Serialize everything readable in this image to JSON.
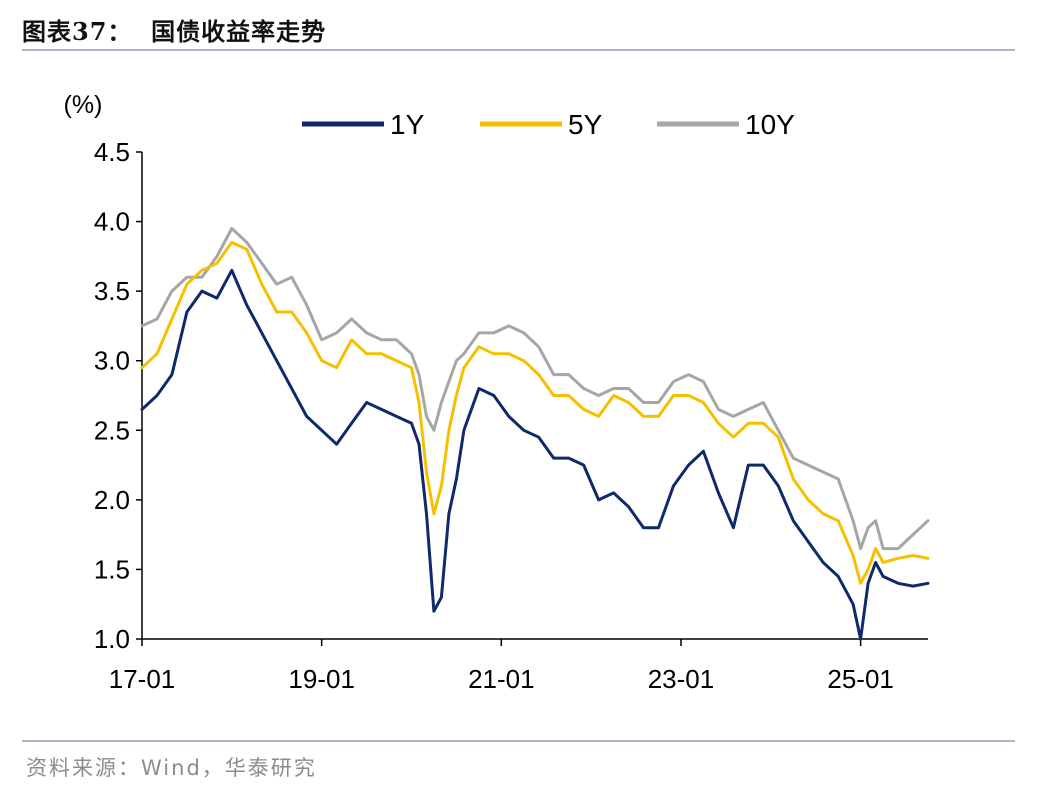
{
  "figure": {
    "title": "图表37：  国债收益率走势",
    "source": "资料来源：Wind，华泰研究"
  },
  "colors": {
    "1Y": "#0f2a6b",
    "5Y": "#f6c000",
    "10Y": "#a6a6a6",
    "rule": "#a9b6c6"
  },
  "chart_data": {
    "type": "line",
    "title": "",
    "xlabel": "",
    "ylabel": "(%)",
    "ylim": [
      1.0,
      4.5
    ],
    "yticks": [
      "1.0",
      "1.5",
      "2.0",
      "2.5",
      "3.0",
      "3.5",
      "4.0",
      "4.5"
    ],
    "xticks": [
      "17-01",
      "19-01",
      "21-01",
      "23-01",
      "25-01"
    ],
    "xlim": [
      "2017-01",
      "2025-10"
    ],
    "grid": false,
    "legend_position": "top",
    "x": [
      "2017-01",
      "2017-03",
      "2017-05",
      "2017-07",
      "2017-09",
      "2017-11",
      "2018-01",
      "2018-03",
      "2018-05",
      "2018-07",
      "2018-09",
      "2018-11",
      "2019-01",
      "2019-03",
      "2019-05",
      "2019-07",
      "2019-09",
      "2019-11",
      "2020-01",
      "2020-02",
      "2020-03",
      "2020-04",
      "2020-05",
      "2020-06",
      "2020-07",
      "2020-08",
      "2020-10",
      "2020-12",
      "2021-02",
      "2021-04",
      "2021-06",
      "2021-08",
      "2021-10",
      "2021-12",
      "2022-02",
      "2022-04",
      "2022-06",
      "2022-08",
      "2022-10",
      "2022-12",
      "2023-02",
      "2023-04",
      "2023-06",
      "2023-08",
      "2023-10",
      "2023-12",
      "2024-02",
      "2024-04",
      "2024-06",
      "2024-08",
      "2024-10",
      "2024-12",
      "2025-01",
      "2025-02",
      "2025-03",
      "2025-04",
      "2025-06",
      "2025-08",
      "2025-10"
    ],
    "series": [
      {
        "name": "1Y",
        "values": [
          2.65,
          2.75,
          2.9,
          3.35,
          3.5,
          3.45,
          3.65,
          3.4,
          3.2,
          3.0,
          2.8,
          2.6,
          2.5,
          2.4,
          2.55,
          2.7,
          2.65,
          2.6,
          2.55,
          2.4,
          1.9,
          1.2,
          1.3,
          1.9,
          2.15,
          2.5,
          2.8,
          2.75,
          2.6,
          2.5,
          2.45,
          2.3,
          2.3,
          2.25,
          2.0,
          2.05,
          1.95,
          1.8,
          1.8,
          2.1,
          2.25,
          2.35,
          2.05,
          1.8,
          2.25,
          2.25,
          2.1,
          1.85,
          1.7,
          1.55,
          1.45,
          1.25,
          1.0,
          1.4,
          1.55,
          1.45,
          1.4,
          1.38,
          1.4
        ]
      },
      {
        "name": "5Y",
        "values": [
          2.95,
          3.05,
          3.3,
          3.55,
          3.65,
          3.7,
          3.85,
          3.8,
          3.55,
          3.35,
          3.35,
          3.2,
          3.0,
          2.95,
          3.15,
          3.05,
          3.05,
          3.0,
          2.95,
          2.7,
          2.2,
          1.9,
          2.1,
          2.5,
          2.75,
          2.95,
          3.1,
          3.05,
          3.05,
          3.0,
          2.9,
          2.75,
          2.75,
          2.65,
          2.6,
          2.75,
          2.7,
          2.6,
          2.6,
          2.75,
          2.75,
          2.7,
          2.55,
          2.45,
          2.55,
          2.55,
          2.45,
          2.15,
          2.0,
          1.9,
          1.85,
          1.6,
          1.4,
          1.5,
          1.65,
          1.55,
          1.58,
          1.6,
          1.58
        ]
      },
      {
        "name": "10Y",
        "values": [
          3.25,
          3.3,
          3.5,
          3.6,
          3.6,
          3.75,
          3.95,
          3.85,
          3.7,
          3.55,
          3.6,
          3.4,
          3.15,
          3.2,
          3.3,
          3.2,
          3.15,
          3.15,
          3.05,
          2.9,
          2.6,
          2.5,
          2.7,
          2.85,
          3.0,
          3.05,
          3.2,
          3.2,
          3.25,
          3.2,
          3.1,
          2.9,
          2.9,
          2.8,
          2.75,
          2.8,
          2.8,
          2.7,
          2.7,
          2.85,
          2.9,
          2.85,
          2.65,
          2.6,
          2.65,
          2.7,
          2.5,
          2.3,
          2.25,
          2.2,
          2.15,
          1.85,
          1.65,
          1.8,
          1.85,
          1.65,
          1.65,
          1.75,
          1.85
        ]
      }
    ]
  }
}
